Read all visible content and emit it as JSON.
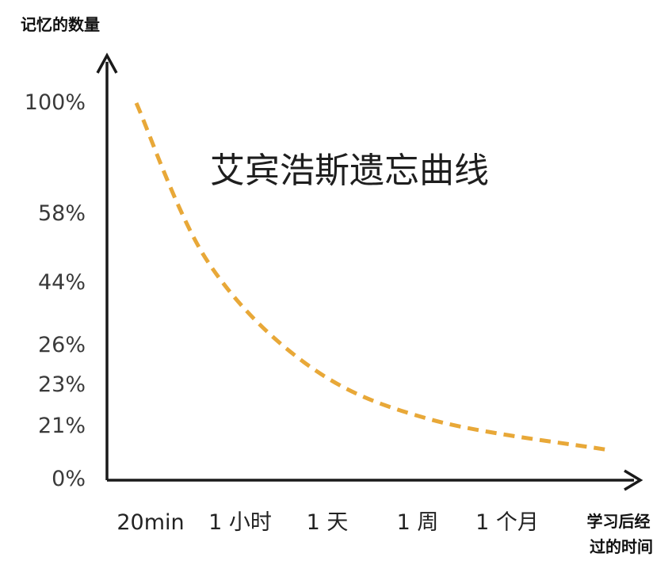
{
  "chart_data": {
    "type": "line",
    "title": "艾宾浩斯遗忘曲线",
    "ylabel": "记忆的数量",
    "xlabel": [
      "学习后经",
      "过的时间"
    ],
    "y_ticks": [
      "100%",
      "58%",
      "44%",
      "26%",
      "23%",
      "21%",
      "0%"
    ],
    "x_ticks": [
      "20min",
      "1 小时",
      "1 天",
      "1 周",
      "1 个月"
    ],
    "grid": false,
    "series": [
      {
        "color": "#e8a838",
        "style": "dashed",
        "points": [
          {
            "x": "20min",
            "y": 100
          },
          {
            "x": "1 小时",
            "y": 58
          },
          {
            "x": "1 天",
            "y": 30
          },
          {
            "x": "1 周",
            "y": 16
          },
          {
            "x": "1 个月",
            "y": 8
          }
        ]
      }
    ]
  }
}
